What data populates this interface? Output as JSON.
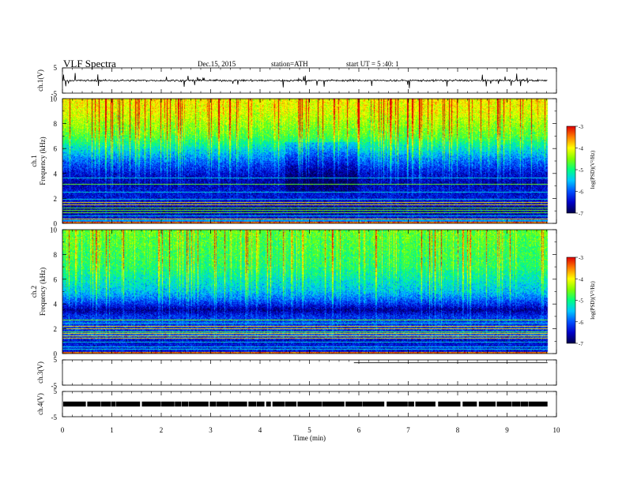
{
  "header": {
    "title": "VLF  Spectra",
    "date": "Dec.15, 2015",
    "station": "station=ATH",
    "start": "start  UT  =   5  :40: 1"
  },
  "colors": {
    "colormap": [
      "#00004a",
      "#0000c8",
      "#0050ff",
      "#00c8ff",
      "#00ff80",
      "#80ff00",
      "#ffff00",
      "#ff8000",
      "#e00000",
      "#ff5050",
      "#ffffff"
    ],
    "trace": "#000000"
  },
  "chart_data": [
    {
      "type": "line",
      "name": "ch1",
      "ylabel": "ch.1(V)",
      "yticks": [
        "5",
        "-5"
      ],
      "ylim": [
        -5,
        5
      ],
      "xlim": [
        0,
        10
      ],
      "trace_mean": 0.0,
      "trace_noise": 0.35,
      "trace_spike_amplitude": 2.0,
      "data_end_min": 9.82
    },
    {
      "type": "heatmap",
      "name": "ch1-spectrogram",
      "ylabel_line1": "ch.1",
      "ylabel_line2": "Frequency  (kHz)",
      "yticks": [
        "0",
        "2",
        "4",
        "6",
        "8",
        "10"
      ],
      "ylim": [
        0,
        10
      ],
      "xlim": [
        0,
        10
      ],
      "data_end_min": 9.82,
      "profile_freq_khz": [
        0.0,
        0.4,
        1.0,
        1.8,
        2.6,
        3.2,
        4.0,
        5.0,
        6.0,
        7.0,
        8.0,
        9.0,
        10.0
      ],
      "profile_logpsd": [
        -5.8,
        -6.4,
        -6.7,
        -6.4,
        -6.4,
        -6.6,
        -6.4,
        -5.9,
        -5.3,
        -4.7,
        -4.4,
        -4.1,
        -4.0
      ],
      "quiet_interval_min": [
        4.5,
        6.0
      ],
      "quiet_shift": -0.35,
      "lines_khz": [
        0.2,
        0.35,
        0.55,
        0.8,
        1.0,
        1.2,
        1.45,
        1.65,
        1.9,
        2.5,
        3.1,
        3.6
      ],
      "colorbar": {
        "label": "log(PSD)(V²/Hz)",
        "ticks": [
          "-3",
          "-4",
          "-5",
          "-6",
          "-7"
        ],
        "range": [
          -7,
          -3
        ]
      }
    },
    {
      "type": "heatmap",
      "name": "ch2-spectrogram",
      "ylabel_line1": "ch.2",
      "ylabel_line2": "Frequency  (kHz)",
      "yticks": [
        "0",
        "2",
        "4",
        "6",
        "8",
        "10"
      ],
      "ylim": [
        0,
        10
      ],
      "xlim": [
        0,
        10
      ],
      "data_end_min": 9.82,
      "profile_freq_khz": [
        0.0,
        0.5,
        1.0,
        1.5,
        2.0,
        2.5,
        3.0,
        3.5,
        4.0,
        4.5,
        5.0,
        6.0,
        7.0,
        8.0,
        9.0,
        10.0
      ],
      "profile_logpsd": [
        -6.4,
        -6.3,
        -6.5,
        -6.0,
        -6.3,
        -6.1,
        -6.2,
        -6.7,
        -6.2,
        -5.8,
        -5.5,
        -5.2,
        -4.9,
        -4.8,
        -4.7,
        -4.6
      ],
      "quiet_interval_min": [
        0.0,
        0.0
      ],
      "quiet_shift": 0.0,
      "lines_khz": [
        0.3,
        0.5,
        0.9,
        1.2,
        1.4,
        1.6,
        1.75,
        2.0,
        2.2,
        2.45,
        2.7
      ],
      "colorbar": {
        "label": "log(PSD)(V²/Hz)",
        "ticks": [
          "-3",
          "-4",
          "-5",
          "-6",
          "-7"
        ],
        "range": [
          -7,
          -3
        ]
      }
    },
    {
      "type": "line",
      "name": "ch3",
      "ylabel": "ch.3(V)",
      "yticks": [
        "5",
        "-5"
      ],
      "ylim": [
        -5,
        5
      ],
      "xlim": [
        0,
        10
      ],
      "flat_value": 3.9,
      "trace_start_min": 5.9,
      "data_end_min": 9.82
    },
    {
      "type": "line",
      "name": "ch4",
      "ylabel": "ch.4(V)",
      "yticks": [
        "5",
        "-5"
      ],
      "ylim": [
        -5,
        5
      ],
      "xlim": [
        0,
        10
      ],
      "flat_value": 0.0,
      "band_width_v": 0.9,
      "data_end_min": 9.82
    }
  ],
  "xaxis": {
    "label": "Time  (min)",
    "ticks": [
      "0",
      "1",
      "2",
      "3",
      "4",
      "5",
      "6",
      "7",
      "8",
      "9",
      "10"
    ],
    "range": [
      0,
      10
    ]
  }
}
